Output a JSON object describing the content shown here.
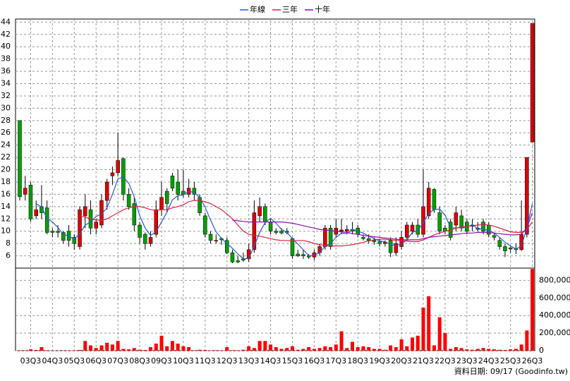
{
  "chart_data": [
    {
      "type": "candlestick",
      "up_color": "#e00000",
      "down_color": "#00a000",
      "open": [
        28,
        16,
        17.5,
        12.5,
        14,
        13.8,
        10,
        10,
        9.8,
        10,
        9,
        7.5,
        12.5,
        13.5,
        10.5,
        11,
        15,
        19,
        19.5,
        21.8,
        16,
        14.5,
        11,
        9.5,
        8,
        9.5,
        13.5,
        16.5,
        19,
        18,
        16.5,
        16,
        17,
        15.5,
        12.5,
        9.5,
        8.5,
        8.8,
        8.5,
        6.5,
        5.2,
        5.5,
        5.5,
        7,
        12.5,
        14,
        11.5,
        10,
        10,
        10,
        8.8,
        6.3,
        6.2,
        6,
        5.8,
        6.5,
        7.5,
        10.5,
        9.5,
        10,
        10,
        10.3,
        10.5,
        9,
        8.8,
        8.5,
        8.3,
        8,
        8.5,
        6.5,
        7.5,
        9,
        10,
        11,
        9.5,
        12.5,
        16.8,
        13,
        10.5,
        11.5,
        11,
        12.5,
        11.5,
        11,
        10.5,
        11.5,
        11,
        9.3,
        8.5,
        7.5,
        7.3,
        7.2,
        7,
        9.5,
        24.5
      ],
      "high": [
        28,
        19,
        18,
        15,
        17.5,
        15,
        10.5,
        11,
        10,
        11,
        9.5,
        14,
        16,
        15,
        12,
        16,
        18.5,
        20.5,
        26,
        22,
        17,
        15.5,
        11.5,
        9.8,
        10,
        15,
        18,
        17,
        19.5,
        20,
        20,
        18.5,
        18,
        16,
        13,
        10,
        9.5,
        9,
        9,
        7,
        6,
        6.5,
        8,
        15,
        15.5,
        14.5,
        12,
        10.5,
        10.5,
        10.5,
        9,
        7,
        7,
        6.3,
        7,
        8,
        11,
        11,
        12,
        12,
        11,
        11.5,
        11,
        9.5,
        9.5,
        9,
        8.8,
        8.5,
        9,
        9,
        10,
        11.5,
        11.5,
        12,
        20,
        18,
        17,
        14,
        11,
        12,
        14,
        13.5,
        12,
        12,
        11.5,
        12,
        11.5,
        9.8,
        9,
        8,
        7.5,
        8,
        15,
        22,
        43.8
      ],
      "low": [
        15,
        15,
        11.5,
        12,
        12,
        9.5,
        9,
        9,
        8,
        7.5,
        7,
        7,
        10.5,
        9.5,
        9.5,
        10.5,
        13.5,
        17.5,
        19,
        15,
        13.5,
        10,
        8,
        7,
        7.5,
        9,
        12.5,
        13,
        16.5,
        15,
        15.5,
        15.5,
        15,
        12.5,
        9,
        8,
        8,
        7.8,
        6.3,
        4.8,
        4.8,
        5,
        5,
        6.5,
        11.5,
        11,
        9.5,
        9.5,
        9.5,
        9.5,
        5.5,
        5.8,
        5.5,
        5.5,
        5.3,
        6,
        7,
        7,
        9,
        9.5,
        9.5,
        9.5,
        9,
        8.5,
        8,
        7.8,
        7.5,
        7.5,
        5.8,
        6,
        7,
        8.5,
        9.5,
        9,
        9,
        12,
        13,
        9.5,
        9.5,
        8.5,
        10,
        10,
        9.5,
        10,
        10,
        9.5,
        9,
        8.5,
        7,
        5.8,
        6.5,
        6.3,
        6.8,
        9,
        24.5
      ],
      "close": [
        15.6,
        17,
        12,
        13.5,
        13,
        9.8,
        9.8,
        9.8,
        8.5,
        8.5,
        8,
        13.5,
        14,
        10.5,
        11.5,
        15,
        18,
        19.5,
        21.5,
        16,
        14,
        11,
        9,
        8,
        9,
        13.5,
        15.5,
        14.5,
        17,
        16,
        16,
        17,
        16,
        13,
        9.5,
        8.5,
        8.5,
        8.6,
        6.5,
        5,
        5,
        5.3,
        7,
        13,
        14,
        11.5,
        10,
        9.8,
        9.7,
        9.8,
        6,
        6,
        6,
        5.8,
        6.5,
        7.5,
        10.5,
        7.5,
        10.5,
        10.2,
        10.3,
        10,
        9.5,
        8.8,
        8.5,
        8.3,
        8,
        8.2,
        6.5,
        8,
        9,
        11,
        11,
        9.5,
        14,
        17,
        13.5,
        10,
        10,
        9,
        13,
        10.5,
        10,
        10.8,
        10.3,
        10,
        9.5,
        9,
        7.5,
        6.8,
        7.1,
        7,
        9.5,
        22,
        43.8
      ],
      "series": [
        {
          "name": "年線",
          "color": "#2a5cd0",
          "values": [
            null,
            null,
            null,
            14.5,
            13.9,
            12.1,
            11.5,
            10.6,
            9.5,
            9.2,
            8.7,
            9.6,
            11,
            11.5,
            12.4,
            12.8,
            13.8,
            16,
            18.5,
            18.8,
            17.8,
            15.6,
            12.5,
            10.5,
            9.3,
            9.9,
            11.5,
            13.1,
            15.1,
            15.8,
            15.9,
            16.5,
            16.3,
            15.5,
            13.9,
            11.8,
            9.9,
            8.8,
            8,
            7.2,
            6.3,
            5.5,
            5.6,
            7.6,
            9.8,
            11.4,
            12.1,
            11.3,
            10.3,
            9.8,
            8.8,
            7.9,
            7,
            6,
            6.1,
            6.5,
            7.6,
            8,
            9,
            9.7,
            9.6,
            10.3,
            10,
            9.7,
            9.2,
            8.8,
            8.4,
            8.3,
            7.8,
            7.7,
            7.9,
            8.6,
            9.8,
            10.1,
            11.4,
            12.9,
            13.5,
            13.6,
            12.6,
            10.6,
            10.5,
            10.6,
            10.6,
            11.1,
            10.4,
            10.3,
            10.2,
            9.7,
            9,
            8.2,
            7.6,
            7.1,
            7.6,
            10.5,
            14.5
          ]
        },
        {
          "name": "三年",
          "color": "#e02040",
          "values": [
            null,
            null,
            null,
            null,
            null,
            null,
            null,
            null,
            null,
            null,
            null,
            12.5,
            12.3,
            12,
            11.8,
            11.8,
            12,
            12.5,
            13,
            13.5,
            13.8,
            14,
            14,
            13.8,
            13.5,
            13.4,
            13.5,
            13.5,
            13.8,
            14,
            14.3,
            14.8,
            15,
            15,
            14.8,
            14.5,
            14,
            13.5,
            12.8,
            12,
            11,
            10,
            9.5,
            9.3,
            9.2,
            9,
            8.8,
            8.6,
            8.5,
            8.5,
            8.4,
            8.5,
            8.5,
            8.3,
            8,
            7.8,
            7.7,
            7.6,
            7.6,
            7.6,
            7.7,
            7.8,
            8,
            8.2,
            8.4,
            8.6,
            8.7,
            8.7,
            8.6,
            8.5,
            8.5,
            8.4,
            8.3,
            8.3,
            8.6,
            9,
            9.4,
            9.7,
            10,
            10.2,
            10.5,
            10.7,
            10.8,
            10.9,
            11,
            11.1,
            11,
            10.8,
            10.5,
            10.2,
            9.9,
            9.8,
            9.8,
            10.3,
            11.5
          ]
        },
        {
          "name": "十年",
          "color": "#9010b0",
          "values": [
            null,
            null,
            null,
            null,
            null,
            null,
            null,
            null,
            null,
            null,
            null,
            null,
            null,
            null,
            null,
            null,
            null,
            null,
            null,
            null,
            null,
            null,
            null,
            null,
            null,
            null,
            null,
            null,
            null,
            null,
            null,
            null,
            null,
            null,
            null,
            null,
            null,
            null,
            null,
            11.8,
            11.7,
            11.6,
            11.5,
            11.5,
            11.5,
            11.5,
            11.5,
            11.5,
            11.5,
            11.4,
            11.3,
            11.1,
            10.9,
            10.7,
            10.5,
            10.3,
            10.2,
            10.1,
            10,
            9.9,
            9.8,
            9.6,
            9.5,
            9.3,
            9.2,
            9.1,
            9,
            8.9,
            8.8,
            8.7,
            8.6,
            8.6,
            8.6,
            8.6,
            8.8,
            9,
            9.1,
            9.2,
            9.3,
            9.4,
            9.5,
            9.6,
            9.7,
            9.7,
            9.8,
            9.8,
            9.8,
            9.7,
            9.6,
            9.5,
            9.4,
            9.4,
            9.5,
            10.5,
            13
          ]
        }
      ],
      "ylim": [
        4,
        44.5
      ],
      "yticks": [
        6,
        8,
        10,
        12,
        14,
        16,
        18,
        20,
        22,
        24,
        26,
        28,
        30,
        32,
        34,
        36,
        38,
        40,
        42,
        44
      ],
      "grid": true
    },
    {
      "type": "bar",
      "color": "#ff0000",
      "categories": [
        null,
        null,
        "03Q3",
        null,
        null,
        null,
        "04Q3",
        null,
        null,
        null,
        "05Q3",
        null,
        null,
        null,
        "06Q3",
        null,
        null,
        null,
        "07Q3",
        null,
        null,
        null,
        "08Q3",
        null,
        null,
        null,
        "09Q3",
        null,
        null,
        null,
        "10Q3",
        null,
        null,
        null,
        "11Q3",
        null,
        null,
        null,
        "12Q3",
        null,
        null,
        null,
        "13Q3",
        null,
        null,
        null,
        "14Q3",
        null,
        null,
        null,
        "15Q3",
        null,
        null,
        null,
        "16Q3",
        null,
        null,
        null,
        "17Q3",
        null,
        null,
        null,
        "18Q3",
        null,
        null,
        null,
        "19Q3",
        null,
        null,
        null,
        "20Q3",
        null,
        null,
        null,
        "21Q3",
        null,
        null,
        null,
        "22Q3",
        null,
        null,
        null,
        "23Q3",
        null,
        null,
        null,
        "24Q3",
        null,
        null,
        null,
        "25Q3",
        null,
        null,
        null,
        "26Q3"
      ],
      "values": [
        5000,
        3000,
        15000,
        8000,
        40000,
        5000,
        2000,
        2000,
        2000,
        2000,
        3000,
        8000,
        110000,
        60000,
        30000,
        60000,
        90000,
        70000,
        110000,
        20000,
        15000,
        30000,
        10000,
        8000,
        40000,
        80000,
        170000,
        50000,
        110000,
        80000,
        50000,
        40000,
        5000,
        10000,
        8000,
        3000,
        5000,
        3000,
        40000,
        5000,
        5000,
        10000,
        50000,
        30000,
        110000,
        110000,
        70000,
        40000,
        20000,
        30000,
        50000,
        10000,
        20000,
        40000,
        20000,
        30000,
        50000,
        40000,
        70000,
        220000,
        30000,
        100000,
        40000,
        50000,
        40000,
        20000,
        20000,
        10000,
        60000,
        40000,
        130000,
        50000,
        150000,
        170000,
        490000,
        620000,
        60000,
        380000,
        200000,
        20000,
        40000,
        30000,
        15000,
        10000,
        20000,
        30000,
        20000,
        15000,
        10000,
        8000,
        15000,
        20000,
        70000,
        230000,
        930000
      ],
      "ylim": [
        0,
        940000
      ],
      "yticks": [
        0,
        {
          "value": 200000,
          "label": "200,000"
        },
        {
          "value": 400000,
          "label": "400,000"
        },
        {
          "value": 600000,
          "label": "600,000"
        },
        {
          "value": 800000,
          "label": "800,000"
        }
      ],
      "grid": true
    }
  ],
  "footer": "資料日期: 09/17 (Goodinfo.tw)"
}
